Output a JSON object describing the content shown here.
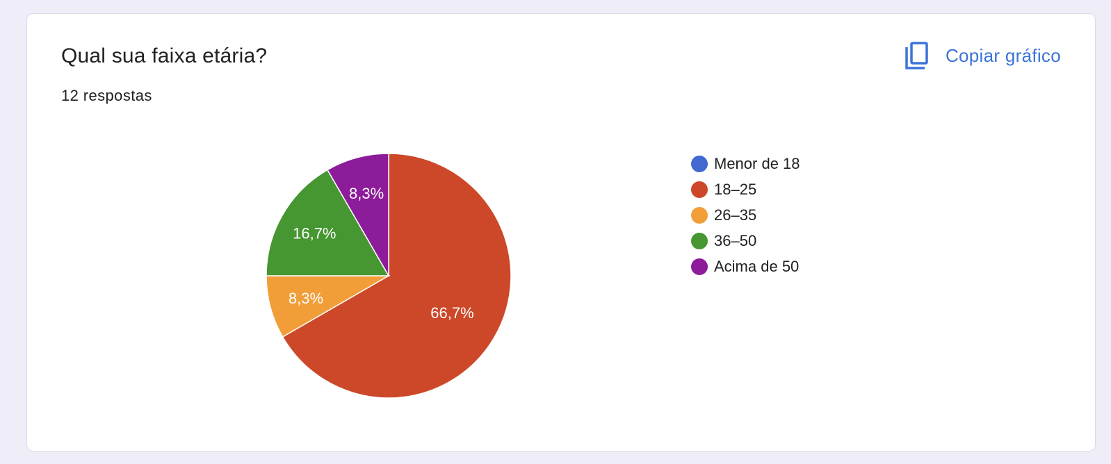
{
  "card": {
    "title": "Qual sua faixa etária?",
    "subtitle": "12 respostas",
    "copy_label": "Copiar gráfico",
    "copy_icon": "copy-icon",
    "accent_color": "#3b73d8"
  },
  "chart_data": {
    "type": "pie",
    "title": "Qual sua faixa etária?",
    "total_responses": 12,
    "categories": [
      "Menor de 18",
      "18–25",
      "26–35",
      "36–50",
      "Acima de 50"
    ],
    "values": [
      0,
      8,
      1,
      2,
      1
    ],
    "labels": [
      "",
      "66,7%",
      "8,3%",
      "16,7%",
      "8,3%"
    ],
    "colors": [
      "#4169cf",
      "#cc4829",
      "#f29e38",
      "#469631",
      "#8c1c9a"
    ],
    "legend_position": "right",
    "start_angle": "top, clockwise"
  }
}
